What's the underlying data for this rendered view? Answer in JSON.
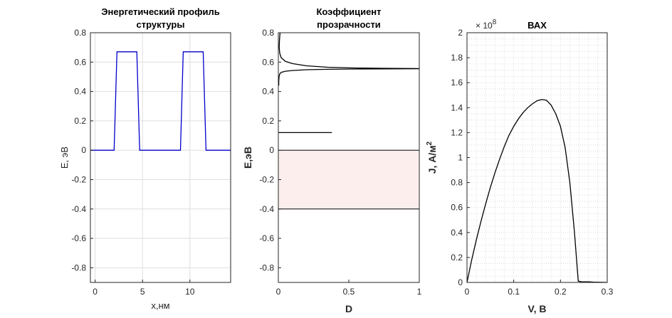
{
  "chart_data": [
    {
      "type": "line",
      "title_lines": [
        "Энергетический профиль",
        "структуры"
      ],
      "xlabel": "x,нм",
      "ylabel": "E, эВ",
      "xlim": [
        -0.5,
        14.3
      ],
      "ylim": [
        -0.9,
        0.8
      ],
      "xticks": [
        0,
        5,
        10
      ],
      "yticks": [
        0.8,
        0.6,
        0.4,
        0.2,
        0,
        -0.2,
        -0.4,
        -0.6,
        -0.8
      ],
      "grid": true,
      "series": [
        {
          "color": "#0000cc",
          "x": [
            -0.5,
            2.0,
            2.3,
            4.4,
            4.7,
            9.0,
            9.3,
            11.4,
            11.7,
            14.3
          ],
          "y": [
            0,
            0,
            0.67,
            0.67,
            0,
            0,
            0.67,
            0.67,
            0,
            0
          ]
        }
      ]
    },
    {
      "type": "line",
      "title_lines": [
        "Коэффициент",
        "прозрачности"
      ],
      "xlabel": "D",
      "ylabel": "E,эВ",
      "xlim": [
        0,
        1
      ],
      "ylim": [
        -0.9,
        0.8
      ],
      "xticks": [
        0,
        0.5,
        1
      ],
      "yticks": [
        0.8,
        0.6,
        0.4,
        0.2,
        0,
        -0.2,
        -0.4,
        -0.6,
        -0.8
      ],
      "grid": false,
      "shaded_region": {
        "x": [
          0,
          1
        ],
        "y": [
          -0.4,
          0
        ],
        "fill": "#fdeeee"
      },
      "series": [
        {
          "color": "#000000",
          "x": [
            0.012,
            0.008,
            0.006,
            0.01,
            0.02,
            0.05,
            0.1,
            0.2,
            0.35,
            0.55,
            0.75,
            1.0
          ],
          "y": [
            0.8,
            0.75,
            0.7,
            0.66,
            0.63,
            0.605,
            0.59,
            0.575,
            0.565,
            0.56,
            0.558,
            0.556
          ]
        },
        {
          "color": "#000000",
          "x": [
            0.003,
            0.003,
            0.005,
            0.01,
            0.02,
            0.05,
            0.1,
            0.2,
            0.35,
            0.55,
            0.75,
            1.0
          ],
          "y": [
            0.44,
            0.47,
            0.5,
            0.52,
            0.53,
            0.538,
            0.543,
            0.548,
            0.551,
            0.553,
            0.554,
            0.555
          ]
        },
        {
          "color": "#000000",
          "x": [
            0,
            0.38
          ],
          "y": [
            0.12,
            0.12
          ]
        }
      ]
    },
    {
      "type": "line",
      "title": "ВАХ",
      "xlabel": "V, В",
      "ylabel_main": "J, А/м",
      "ylabel_sup": "2",
      "exponent_base": "× 10",
      "exponent_power": "8",
      "xlim": [
        0,
        0.3
      ],
      "ylim": [
        0,
        2
      ],
      "xticks": [
        0,
        0.1,
        0.2,
        0.3
      ],
      "yticks": [
        2,
        1.8,
        1.6,
        1.4,
        1.2,
        1,
        0.8,
        0.6,
        0.4,
        0.2,
        0
      ],
      "grid": "minor-dotted",
      "series": [
        {
          "color": "#000000",
          "x": [
            0,
            0.01,
            0.02,
            0.03,
            0.04,
            0.05,
            0.06,
            0.07,
            0.08,
            0.09,
            0.1,
            0.11,
            0.12,
            0.13,
            0.14,
            0.15,
            0.16,
            0.17,
            0.18,
            0.19,
            0.2,
            0.21,
            0.22,
            0.23,
            0.238,
            0.245,
            0.25,
            0.26,
            0.27,
            0.28,
            0.3
          ],
          "y": [
            0,
            0.18,
            0.34,
            0.49,
            0.63,
            0.76,
            0.88,
            0.99,
            1.09,
            1.18,
            1.25,
            1.31,
            1.36,
            1.4,
            1.43,
            1.455,
            1.465,
            1.46,
            1.42,
            1.35,
            1.25,
            1.08,
            0.8,
            0.4,
            0.01,
            0.005,
            0.005,
            0.005,
            0.003,
            0.002,
            0
          ]
        }
      ]
    }
  ]
}
